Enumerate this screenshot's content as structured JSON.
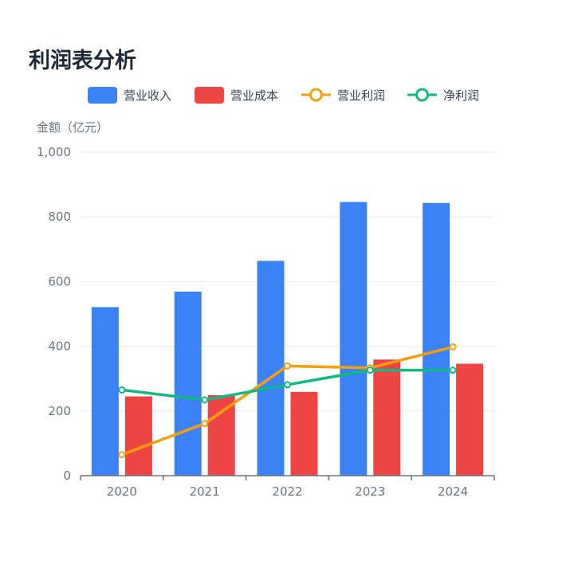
{
  "page": {
    "title": "利润表分析"
  },
  "chart_data": {
    "type": "bar",
    "title": "利润表分析",
    "ylabel": "金额（亿元）",
    "xlabel": "",
    "ylim": [
      0,
      1000
    ],
    "yticks": [
      0,
      200,
      400,
      600,
      800,
      1000
    ],
    "ytick_labels": [
      "0",
      "200",
      "400",
      "600",
      "800",
      "1,000"
    ],
    "categories": [
      "2020",
      "2021",
      "2022",
      "2023",
      "2024"
    ],
    "grid": true,
    "legend_position": "top",
    "series": [
      {
        "name": "营业收入",
        "kind": "bar",
        "color": "#3b82f6",
        "values": [
          521,
          569,
          664,
          846,
          843
        ]
      },
      {
        "name": "营业成本",
        "kind": "bar",
        "color": "#ef4444",
        "values": [
          245,
          249,
          259,
          359,
          346
        ]
      },
      {
        "name": "营业利润",
        "kind": "line",
        "color": "#f59e0b",
        "values": [
          65,
          161,
          339,
          333,
          398
        ]
      },
      {
        "name": "净利润",
        "kind": "line",
        "color": "#10b981",
        "values": [
          265,
          234,
          281,
          326,
          326
        ]
      }
    ]
  }
}
